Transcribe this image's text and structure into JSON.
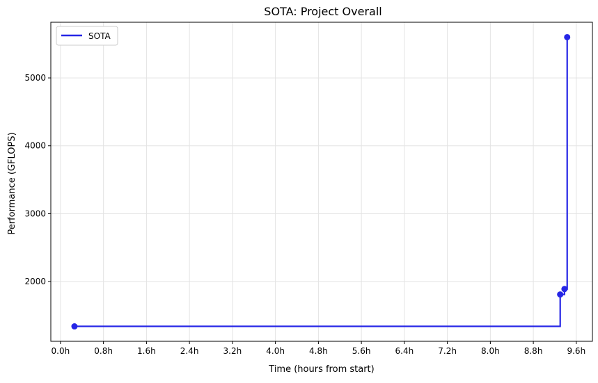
{
  "chart_data": {
    "type": "line",
    "step": "post",
    "title": "SOTA: Project Overall",
    "xlabel": "Time (hours from start)",
    "ylabel": "Performance (GFLOPS)",
    "xlim": [
      -0.18,
      9.9
    ],
    "ylim": [
      1120,
      5820
    ],
    "x_ticks": [
      0,
      0.8,
      1.6,
      2.4,
      3.2,
      4.0,
      4.8,
      5.6,
      6.4,
      7.2,
      8.0,
      8.8,
      9.6
    ],
    "x_tick_labels": [
      "0.0h",
      "0.8h",
      "1.6h",
      "2.4h",
      "3.2h",
      "4.0h",
      "4.8h",
      "5.6h",
      "6.4h",
      "7.2h",
      "8.0h",
      "8.8h",
      "9.6h"
    ],
    "y_ticks": [
      2000,
      3000,
      4000,
      5000
    ],
    "y_tick_labels": [
      "2000",
      "3000",
      "4000",
      "5000"
    ],
    "grid": true,
    "legend": "top-left",
    "series": [
      {
        "name": "SOTA",
        "color": "#2626e6",
        "x": [
          0.26,
          9.3,
          9.38,
          9.43
        ],
        "y": [
          1340,
          1810,
          1890,
          5600
        ],
        "step_end_x": 9.43
      }
    ]
  }
}
